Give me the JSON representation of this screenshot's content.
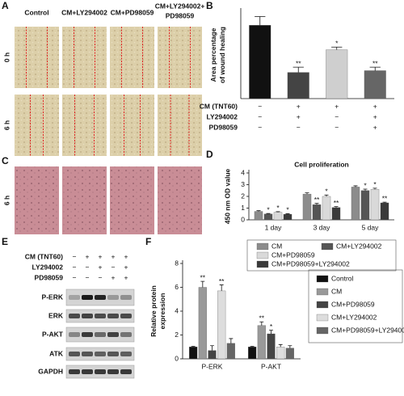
{
  "panel_a": {
    "label": "A",
    "columns": [
      [
        "Control"
      ],
      [
        "CM+LY294002"
      ],
      [
        "CM+PD98059"
      ],
      [
        "CM+LY294002+",
        "PD98059"
      ]
    ],
    "rows": [
      "0 h",
      "6 h"
    ]
  },
  "panel_c": {
    "label": "C",
    "rows": [
      "6 h"
    ]
  },
  "panel_e": {
    "label": "E",
    "treatments": [
      {
        "name": "CM (TNT60)",
        "signs": [
          "−",
          "+",
          "+",
          "+",
          "+"
        ]
      },
      {
        "name": "LY294002",
        "signs": [
          "−",
          "−",
          "+",
          "−",
          "+"
        ]
      },
      {
        "name": "PD98059",
        "signs": [
          "−",
          "−",
          "−",
          "+",
          "+"
        ]
      }
    ],
    "bands": [
      "P-ERK",
      "ERK",
      "P-AKT",
      "ATK",
      "GAPDH"
    ]
  },
  "chart_data": [
    {
      "panel": "B",
      "type": "bar",
      "ylabel": [
        "Area percentage",
        "of wound healing"
      ],
      "values": [
        0.42,
        0.15,
        0.28,
        0.16
      ],
      "errors": [
        0.05,
        0.03,
        0.015,
        0.02
      ],
      "colors": [
        "#111111",
        "#444444",
        "#cfcfcf",
        "#666666"
      ],
      "annotations": [
        null,
        "**",
        "*",
        "**"
      ],
      "ylim": [
        0,
        0.5
      ],
      "conditions": [
        {
          "name": "CM (TNT60)",
          "signs": [
            "−",
            "+",
            "+",
            "+"
          ]
        },
        {
          "name": "LY294002",
          "signs": [
            "−",
            "+",
            "−",
            "+"
          ]
        },
        {
          "name": "PD98059",
          "signs": [
            "−",
            "−",
            "−",
            "+"
          ]
        }
      ]
    },
    {
      "panel": "D",
      "type": "grouped_bar",
      "title": "Cell proliferation",
      "ylabel": [
        "450 nm OD value"
      ],
      "categories": [
        "1 day",
        "3 day",
        "5 day"
      ],
      "series": [
        {
          "name": "CM",
          "color": "#8c8c8c",
          "values": [
            0.72,
            2.2,
            2.8
          ],
          "errors": [
            0.06,
            0.1,
            0.1
          ],
          "annotations": [
            null,
            null,
            null
          ]
        },
        {
          "name": "CM+LY294002",
          "color": "#555555",
          "values": [
            0.5,
            1.3,
            2.5
          ],
          "errors": [
            0.04,
            0.1,
            0.12
          ],
          "annotations": [
            "*",
            "**",
            "*"
          ]
        },
        {
          "name": "CM+PD98059",
          "color": "#d9d9d9",
          "values": [
            0.65,
            2.0,
            2.6
          ],
          "errors": [
            0.05,
            0.12,
            0.1
          ],
          "annotations": [
            "*",
            "*",
            "*"
          ]
        },
        {
          "name": "CM+PD98059+LY294002",
          "color": "#3a3a3a",
          "values": [
            0.48,
            1.05,
            1.45
          ],
          "errors": [
            0.04,
            0.08,
            0.06
          ],
          "annotations": [
            "*",
            "**",
            "**"
          ]
        }
      ],
      "ylim": [
        0,
        4
      ],
      "yticks": [
        0,
        1,
        2,
        3,
        4
      ]
    },
    {
      "panel": "F",
      "type": "grouped_bar",
      "ylabel": [
        "Relative protein",
        "expression"
      ],
      "categories": [
        "P-ERK",
        "P-AKT"
      ],
      "series": [
        {
          "name": "Control",
          "color": "#111111",
          "values": [
            1,
            1
          ],
          "errors": [
            0.05,
            0.05
          ],
          "annotations": [
            null,
            null
          ]
        },
        {
          "name": "CM",
          "color": "#999999",
          "values": [
            6,
            2.8
          ],
          "errors": [
            0.5,
            0.3
          ],
          "annotations": [
            "**",
            "**"
          ]
        },
        {
          "name": "CM+PD98059",
          "color": "#444444",
          "values": [
            0.7,
            2.1
          ],
          "errors": [
            0.4,
            0.3
          ],
          "annotations": [
            null,
            "*"
          ]
        },
        {
          "name": "CM+LY294002",
          "color": "#dddddd",
          "values": [
            5.7,
            1.0
          ],
          "errors": [
            0.5,
            0.2
          ],
          "annotations": [
            "**",
            null
          ]
        },
        {
          "name": "CM+PD98059+LY294002",
          "color": "#666666",
          "values": [
            1.3,
            0.9
          ],
          "errors": [
            0.4,
            0.2
          ],
          "annotations": [
            null,
            null
          ]
        }
      ],
      "ylim": [
        0,
        8
      ],
      "yticks": [
        0,
        2,
        4,
        6,
        8
      ]
    }
  ]
}
